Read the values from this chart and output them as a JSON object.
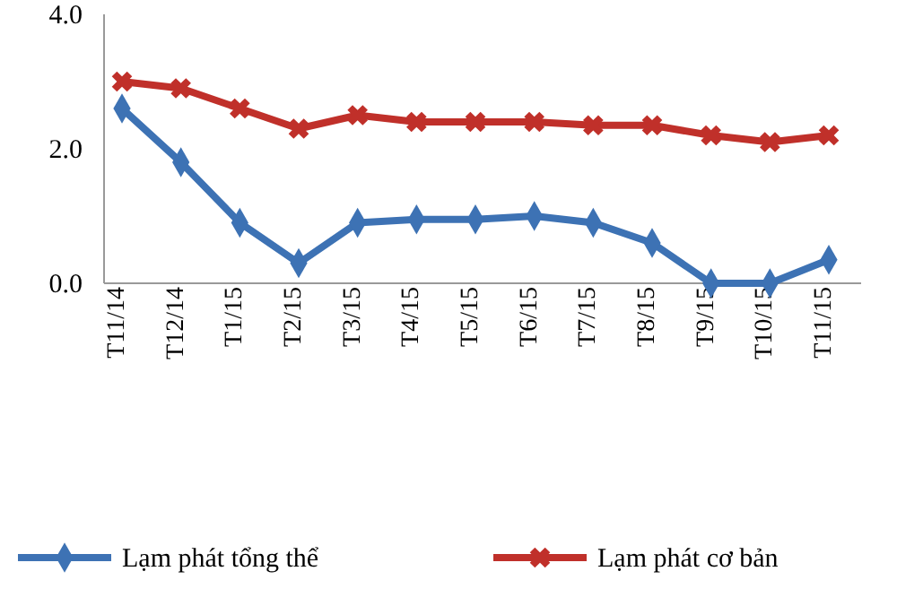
{
  "chart_data": {
    "type": "line",
    "categories": [
      "T11/14",
      "T12/14",
      "T1/15",
      "T2/15",
      "T3/15",
      "T4/15",
      "T5/15",
      "T6/15",
      "T7/15",
      "T8/15",
      "T9/15",
      "T10/15",
      "T11/15"
    ],
    "series": [
      {
        "name": "Lạm phát tổng thể",
        "color": "#3d72b4",
        "marker": "diamond",
        "values": [
          2.6,
          1.8,
          0.9,
          0.3,
          0.9,
          0.95,
          0.95,
          1.0,
          0.9,
          0.6,
          0.0,
          0.0,
          0.35
        ]
      },
      {
        "name": "Lạm phát cơ bản",
        "color": "#c0302a",
        "marker": "cross",
        "values": [
          3.0,
          2.9,
          2.6,
          2.3,
          2.5,
          2.4,
          2.4,
          2.4,
          2.35,
          2.35,
          2.2,
          2.1,
          2.2
        ]
      }
    ],
    "ylim": [
      0,
      4
    ],
    "yticks": [
      {
        "value": 0,
        "label": "0.0"
      },
      {
        "value": 2,
        "label": "2.0"
      },
      {
        "value": 4,
        "label": "4.0"
      }
    ],
    "grid": false,
    "legend": "bottom",
    "line_style": "solid"
  }
}
